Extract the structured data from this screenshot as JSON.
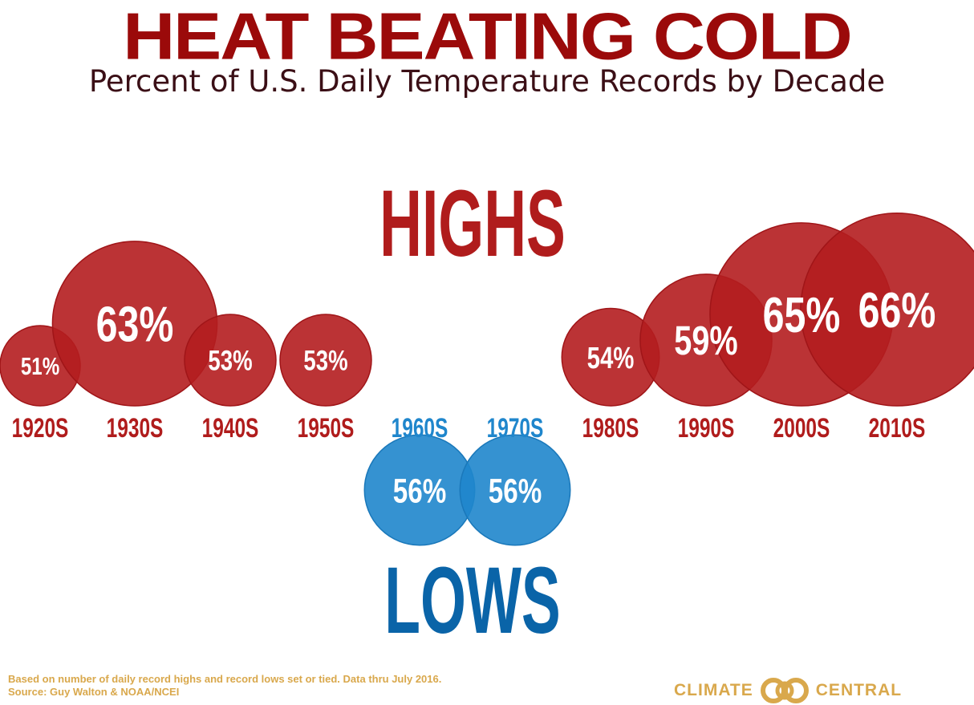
{
  "header": {
    "title": "HEAT BEATING COLD",
    "subtitle": "Percent of U.S. Daily Temperature Records by Decade"
  },
  "labels": {
    "highs": "HIGHS",
    "lows": "LOWS"
  },
  "colors": {
    "title": "#9b0a0a",
    "subtitle": "#3b0f16",
    "highs": "#b41d1f",
    "highs_label": "#b01c1c",
    "lows": "#1f86cc",
    "lows_label": "#0a64a8",
    "footnote": "#d9a84c",
    "logo": "#d9a84c"
  },
  "chart_data": {
    "type": "bubble",
    "title": "HEAT BEATING COLD",
    "subtitle": "Percent of U.S. Daily Temperature Records by Decade",
    "categories": [
      "1920S",
      "1930S",
      "1940S",
      "1950S",
      "1960S",
      "1970S",
      "1980S",
      "1990S",
      "2000S",
      "2010S"
    ],
    "series": [
      {
        "name": "HIGHS",
        "values": [
          51,
          63,
          53,
          53,
          null,
          null,
          54,
          59,
          65,
          66
        ]
      },
      {
        "name": "LOWS",
        "values": [
          null,
          null,
          null,
          null,
          56,
          56,
          null,
          null,
          null,
          null
        ]
      }
    ],
    "value_labels": [
      "51%",
      "63%",
      "53%",
      "53%",
      "56%",
      "56%",
      "54%",
      "59%",
      "65%",
      "66%"
    ],
    "winner": [
      "HIGHS",
      "HIGHS",
      "HIGHS",
      "HIGHS",
      "LOWS",
      "LOWS",
      "HIGHS",
      "HIGHS",
      "HIGHS",
      "HIGHS"
    ]
  },
  "footnote": {
    "line1": "Based on number of daily record highs and record lows set or tied. Data thru July 2016.",
    "line2": "Source: Guy Walton & NOAA/NCEI"
  },
  "logo": {
    "left_text": "CLIMATE",
    "right_text": "CENTRAL"
  }
}
